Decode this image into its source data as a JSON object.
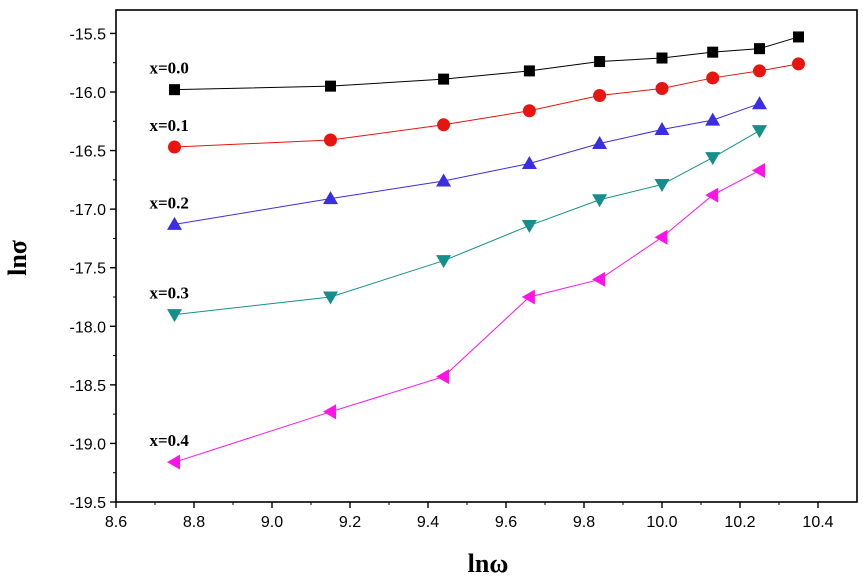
{
  "chart_data": {
    "type": "line",
    "title": "",
    "xlabel": "lnω",
    "ylabel": "lnσ",
    "xlim": [
      8.6,
      10.5
    ],
    "ylim": [
      -19.5,
      -15.3
    ],
    "xticks": [
      8.6,
      8.8,
      9.0,
      9.2,
      9.4,
      9.6,
      9.8,
      10.0,
      10.2,
      10.4
    ],
    "yticks": [
      -15.5,
      -16.0,
      -16.5,
      -17.0,
      -17.5,
      -18.0,
      -18.5,
      -19.0,
      -19.5
    ],
    "xtick_labels": [
      "8.6",
      "8.8",
      "9.0",
      "9.2",
      "9.4",
      "9.6",
      "9.8",
      "10.0",
      "10.2",
      "10.4"
    ],
    "ytick_labels": [
      "-15.5",
      "-16.0",
      "-16.5",
      "-17.0",
      "-17.5",
      "-18.0",
      "-18.5",
      "-19.0",
      "-19.5"
    ],
    "grid": false,
    "series": [
      {
        "name": "x=0.0",
        "color": "#000000",
        "marker": "square",
        "x": [
          8.75,
          9.15,
          9.44,
          9.66,
          9.84,
          10.0,
          10.13,
          10.25,
          10.35
        ],
        "y": [
          -15.98,
          -15.95,
          -15.89,
          -15.82,
          -15.74,
          -15.71,
          -15.66,
          -15.63,
          -15.53
        ]
      },
      {
        "name": "x=0.1",
        "color": "#e8140f",
        "marker": "circle",
        "x": [
          8.75,
          9.15,
          9.44,
          9.66,
          9.84,
          10.0,
          10.13,
          10.25,
          10.35
        ],
        "y": [
          -16.47,
          -16.41,
          -16.28,
          -16.16,
          -16.03,
          -15.97,
          -15.88,
          -15.82,
          -15.76
        ]
      },
      {
        "name": "x=0.2",
        "color": "#3a2ee0",
        "marker": "triangle-up",
        "x": [
          8.75,
          9.15,
          9.44,
          9.66,
          9.84,
          10.0,
          10.13,
          10.25
        ],
        "y": [
          -17.13,
          -16.91,
          -16.76,
          -16.61,
          -16.44,
          -16.32,
          -16.24,
          -16.1
        ]
      },
      {
        "name": "x=0.3",
        "color": "#14908c",
        "marker": "triangle-down",
        "x": [
          8.75,
          9.15,
          9.44,
          9.66,
          9.84,
          10.0,
          10.13,
          10.25
        ],
        "y": [
          -17.9,
          -17.75,
          -17.44,
          -17.14,
          -16.92,
          -16.79,
          -16.56,
          -16.33
        ]
      },
      {
        "name": "x=0.4",
        "color": "#ff14e6",
        "marker": "triangle-left",
        "x": [
          8.75,
          9.15,
          9.44,
          9.66,
          9.84,
          10.0,
          10.13,
          10.25
        ],
        "y": [
          -19.16,
          -18.73,
          -18.43,
          -17.75,
          -17.6,
          -17.24,
          -16.88,
          -16.67
        ]
      }
    ],
    "annotations": [
      {
        "text": "x=0.0",
        "series": "x=0.0"
      },
      {
        "text": "x=0.1",
        "series": "x=0.1"
      },
      {
        "text": "x=0.2",
        "series": "x=0.2"
      },
      {
        "text": "x=0.3",
        "series": "x=0.3"
      },
      {
        "text": "x=0.4",
        "series": "x=0.4"
      }
    ]
  }
}
